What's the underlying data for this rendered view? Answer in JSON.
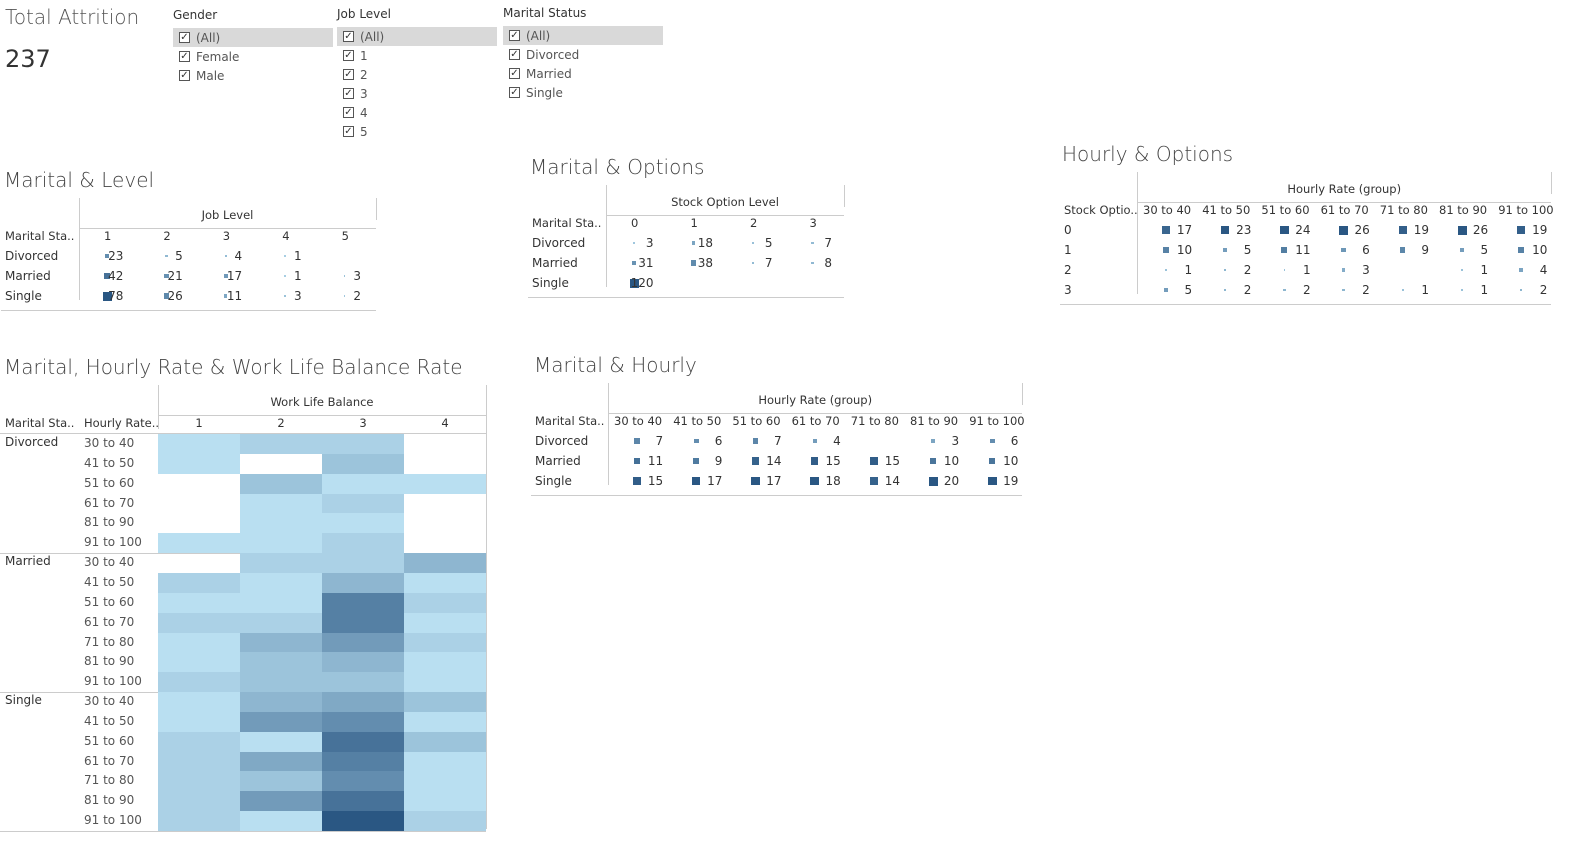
{
  "kpi": {
    "title": "Total Attrition",
    "value": "237"
  },
  "filters": {
    "gender": {
      "title": "Gender",
      "items": [
        "(All)",
        "Female",
        "Male"
      ]
    },
    "job_level": {
      "title": "Job Level",
      "items": [
        "(All)",
        "1",
        "2",
        "3",
        "4",
        "5"
      ]
    },
    "marital": {
      "title": "Marital Status",
      "items": [
        "(All)",
        "Divorced",
        "Married",
        "Single"
      ]
    }
  },
  "marital_level": {
    "title": "Marital & Level",
    "col_header": "Job Level",
    "row_header": "Marital Sta..",
    "columns": [
      "1",
      "2",
      "3",
      "4",
      "5"
    ],
    "rows": [
      "Divorced",
      "Married",
      "Single"
    ],
    "values": [
      [
        23,
        5,
        4,
        1,
        null
      ],
      [
        42,
        21,
        17,
        1,
        3
      ],
      [
        78,
        26,
        11,
        3,
        2
      ]
    ]
  },
  "marital_options": {
    "title": "Marital & Options",
    "col_header": "Stock Option Level",
    "row_header": "Marital Sta..",
    "columns": [
      "0",
      "1",
      "2",
      "3"
    ],
    "rows": [
      "Divorced",
      "Married",
      "Single"
    ],
    "values": [
      [
        3,
        18,
        5,
        7
      ],
      [
        31,
        38,
        7,
        8
      ],
      [
        120,
        null,
        null,
        null
      ]
    ]
  },
  "hourly_options": {
    "title": "Hourly & Options",
    "col_header": "Hourly Rate (group)",
    "row_header": "Stock Optio..",
    "columns": [
      "30 to 40",
      "41 to 50",
      "51 to 60",
      "61 to 70",
      "71 to 80",
      "81 to 90",
      "91 to 100"
    ],
    "rows": [
      "0",
      "1",
      "2",
      "3"
    ],
    "values": [
      [
        17,
        23,
        24,
        26,
        19,
        26,
        19
      ],
      [
        10,
        5,
        11,
        6,
        9,
        5,
        10
      ],
      [
        1,
        2,
        1,
        3,
        null,
        1,
        4
      ],
      [
        5,
        2,
        2,
        2,
        1,
        1,
        2
      ]
    ]
  },
  "marital_hourly": {
    "title": "Marital & Hourly",
    "col_header": "Hourly Rate (group)",
    "row_header": "Marital Sta..",
    "columns": [
      "30 to 40",
      "41 to 50",
      "51 to 60",
      "61 to 70",
      "71 to 80",
      "81 to 90",
      "91 to 100"
    ],
    "rows": [
      "Divorced",
      "Married",
      "Single"
    ],
    "values": [
      [
        7,
        6,
        7,
        4,
        null,
        3,
        6
      ],
      [
        11,
        9,
        14,
        15,
        15,
        10,
        10
      ],
      [
        15,
        17,
        17,
        18,
        14,
        20,
        19
      ]
    ]
  },
  "heatmap": {
    "title": "Marital, Hourly Rate & Work Life Balance Rate",
    "col_header": "Work Life Balance",
    "row_header_1": "Marital Sta..",
    "row_header_2": "Hourly Rate..",
    "columns": [
      "1",
      "2",
      "3",
      "4"
    ],
    "groups": [
      {
        "name": "Divorced",
        "rows": [
          {
            "label": "30 to 40",
            "values": [
              1,
              2,
              2,
              null
            ]
          },
          {
            "label": "41 to 50",
            "values": [
              1,
              null,
              3,
              null
            ]
          },
          {
            "label": "51 to 60",
            "values": [
              null,
              3,
              1,
              1
            ]
          },
          {
            "label": "61 to 70",
            "values": [
              null,
              1,
              2,
              null
            ]
          },
          {
            "label": "81 to 90",
            "values": [
              null,
              1,
              1,
              null
            ]
          },
          {
            "label": "91 to 100",
            "values": [
              1,
              1,
              2,
              null
            ]
          }
        ]
      },
      {
        "name": "Married",
        "rows": [
          {
            "label": "30 to 40",
            "values": [
              null,
              2,
              2,
              4
            ]
          },
          {
            "label": "41 to 50",
            "values": [
              2,
              1,
              4,
              1
            ]
          },
          {
            "label": "51 to 60",
            "values": [
              1,
              1,
              8,
              2
            ]
          },
          {
            "label": "61 to 70",
            "values": [
              2,
              2,
              8,
              1
            ]
          },
          {
            "label": "71 to 80",
            "values": [
              1,
              4,
              6,
              2
            ]
          },
          {
            "label": "81 to 90",
            "values": [
              1,
              3,
              4,
              1
            ]
          },
          {
            "label": "91 to 100",
            "values": [
              2,
              3,
              3,
              1
            ]
          }
        ]
      },
      {
        "name": "Single",
        "rows": [
          {
            "label": "30 to 40",
            "values": [
              1,
              4,
              5,
              3
            ]
          },
          {
            "label": "41 to 50",
            "values": [
              1,
              6,
              7,
              1
            ]
          },
          {
            "label": "51 to 60",
            "values": [
              2,
              1,
              9,
              3
            ]
          },
          {
            "label": "61 to 70",
            "values": [
              2,
              5,
              8,
              1
            ]
          },
          {
            "label": "71 to 80",
            "values": [
              2,
              3,
              7,
              1
            ]
          },
          {
            "label": "81 to 90",
            "values": [
              2,
              6,
              9,
              1
            ]
          },
          {
            "label": "91 to 100",
            "values": [
              2,
              1,
              11,
              2
            ]
          }
        ]
      }
    ]
  },
  "colors": {
    "dark": "#2a5783",
    "light": "#b9dff1",
    "mid": "#6d9ec8",
    "accent": "#4e79a7"
  }
}
